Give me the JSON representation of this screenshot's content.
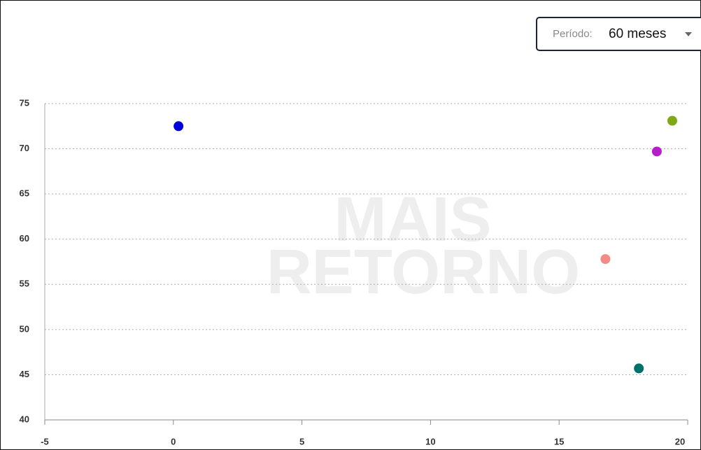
{
  "period_label": "Período:",
  "period_value": "60 meses",
  "watermark": [
    "MAIS",
    "RETORNO"
  ],
  "chart_data": {
    "type": "scatter",
    "x": [
      0.2,
      19.4,
      18.8,
      16.8,
      18.1
    ],
    "values": [
      72.5,
      73.1,
      69.7,
      57.8,
      45.7
    ],
    "colors": [
      "#0000dd",
      "#7fa818",
      "#b61fc8",
      "#f28b86",
      "#00706a"
    ],
    "xlim": [
      -5,
      20
    ],
    "xticks": [
      -5,
      0,
      5,
      10,
      15,
      20
    ],
    "ylim": [
      40,
      75
    ],
    "yticks": [
      40,
      45,
      50,
      55,
      60,
      65,
      70,
      75
    ],
    "grid": true
  }
}
